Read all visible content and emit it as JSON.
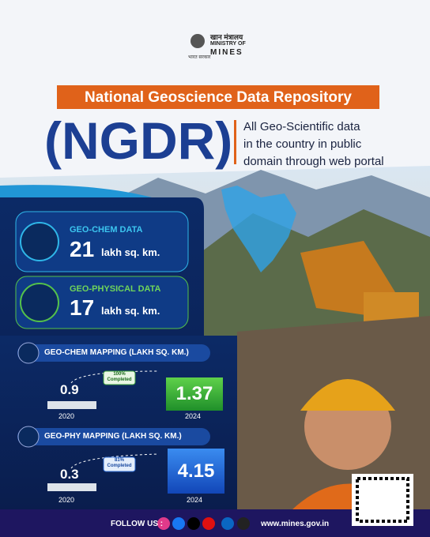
{
  "header": {
    "hindi": "खान मंत्रालय",
    "ministry": "MINISTRY OF",
    "mines": "MINES",
    "emblem_caption": "भारत सरकार"
  },
  "title": "National Geoscience Data Repository",
  "acronym": "(NGDR)",
  "tagline": [
    "All Geo-Scientific data",
    "in the country in public",
    "domain through web portal"
  ],
  "stats": [
    {
      "label": "GEO-CHEM DATA",
      "value": "21",
      "unit": "lakh sq. km."
    },
    {
      "label": "GEO-PHYSICAL DATA",
      "value": "17",
      "unit": "lakh sq. km."
    }
  ],
  "mapping": [
    {
      "title": "GEO-CHEM MAPPING (LAKH SQ. KM.)",
      "from": {
        "value": 0.9,
        "year": "2020"
      },
      "to": {
        "value": 1.37,
        "year": "2024"
      },
      "badge": [
        "100%",
        "Completed"
      ]
    },
    {
      "title": "GEO-PHY MAPPING (LAKH SQ. KM.)",
      "from": {
        "value": 0.3,
        "year": "2020"
      },
      "to": {
        "value": 4.15,
        "year": "2024"
      },
      "badge": [
        "81%",
        "Completed"
      ]
    }
  ],
  "footer": {
    "follow": "FOLLOW US :",
    "url": "www.mines.gov.in"
  }
}
